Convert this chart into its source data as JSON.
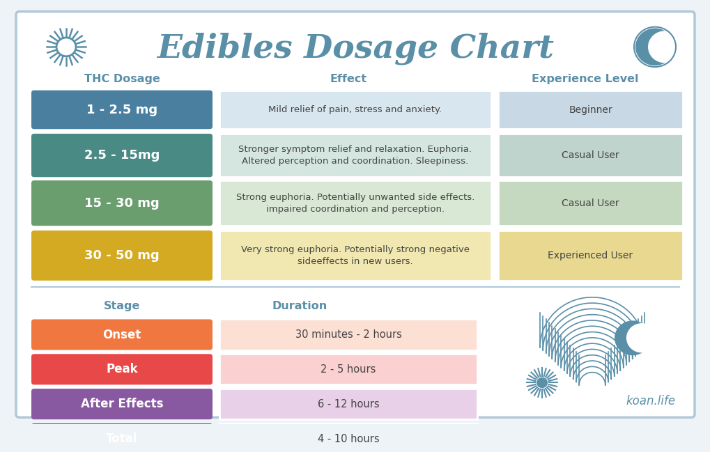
{
  "title": "Edibles Dosage Chart",
  "title_color": "#5a8fa8",
  "bg_color": "#eef3f7",
  "card_bg": "#ffffff",
  "border_color": "#b0c8d8",
  "header_color": "#5a8fa8",
  "dosage_rows": [
    {
      "dose": "1 - 2.5 mg",
      "effect": "Mild relief of pain, stress and anxiety.",
      "experience": "Beginner",
      "pill_color": "#4a7fa0",
      "eff_bg": "#d8e6ef",
      "exp_bg": "#c8d8e4"
    },
    {
      "dose": "2.5 - 15mg",
      "effect": "Stronger symptom relief and relaxation. Euphoria.\nAltered perception and coordination. Sleepiness.",
      "experience": "Casual User",
      "pill_color": "#4a8a85",
      "eff_bg": "#d5e6e0",
      "exp_bg": "#c0d4ce"
    },
    {
      "dose": "15 - 30 mg",
      "effect": "Strong euphoria. Potentially unwanted side effects.\nimpaired coordination and perception.",
      "experience": "Casual User",
      "pill_color": "#6a9e6e",
      "eff_bg": "#d8e8d4",
      "exp_bg": "#c5d8c0"
    },
    {
      "dose": "30 - 50 mg",
      "effect": "Very strong euphoria. Potentially strong negative\nsideeffects in new users.",
      "experience": "Experienced User",
      "pill_color": "#d4aa22",
      "eff_bg": "#f0e8b0",
      "exp_bg": "#e8d890"
    }
  ],
  "lifecycle_rows": [
    {
      "stage": "Onset",
      "duration": "30 minutes - 2 hours",
      "pill_color": "#f07840",
      "dur_bg": "#fce0d4"
    },
    {
      "stage": "Peak",
      "duration": "2 - 5 hours",
      "pill_color": "#e84848",
      "dur_bg": "#fad0d0"
    },
    {
      "stage": "After Effects",
      "duration": "6 - 12 hours",
      "pill_color": "#8858a0",
      "dur_bg": "#e8d0e8"
    },
    {
      "stage": "Total",
      "duration": "4 - 10 hours",
      "pill_color": "#5850a0",
      "dur_bg": "#d8d4f0"
    }
  ],
  "col_headers": [
    "THC Dosage",
    "Effect",
    "Experience Level"
  ],
  "lifecycle_headers": [
    "Stage",
    "Duration"
  ],
  "watermark": "koan.life",
  "accent_color": "#5a8fa8",
  "text_dark": "#444444"
}
